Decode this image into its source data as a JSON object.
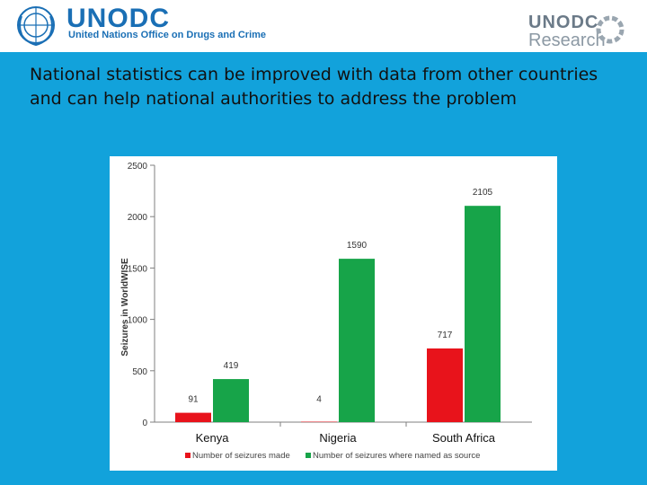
{
  "header": {
    "brand": "UNODC",
    "subtitle": "United Nations Office on Drugs and Crime",
    "research_logo": {
      "line1": "UNODC",
      "line2": "Research"
    }
  },
  "headline": "National statistics can be improved with data from other countries and can help national authorities to address the problem",
  "colors": {
    "band": "#12a2db",
    "made": "#e8131b",
    "source": "#17a449",
    "brand": "#1a6fb5"
  },
  "chart_data": {
    "type": "bar",
    "title": "",
    "xlabel": "",
    "ylabel": "Seizures in WorldWISE",
    "ylim": [
      0,
      2500
    ],
    "yticks": [
      0,
      500,
      1000,
      1500,
      2000,
      2500
    ],
    "categories": [
      "Kenya",
      "Nigeria",
      "South Africa"
    ],
    "series": [
      {
        "name": "Number of seizures made",
        "color": "#e8131b",
        "values": [
          91,
          4,
          717
        ]
      },
      {
        "name": "Number of seizures where named as source",
        "color": "#17a449",
        "values": [
          419,
          1590,
          2105
        ]
      }
    ],
    "legend_position": "bottom"
  }
}
